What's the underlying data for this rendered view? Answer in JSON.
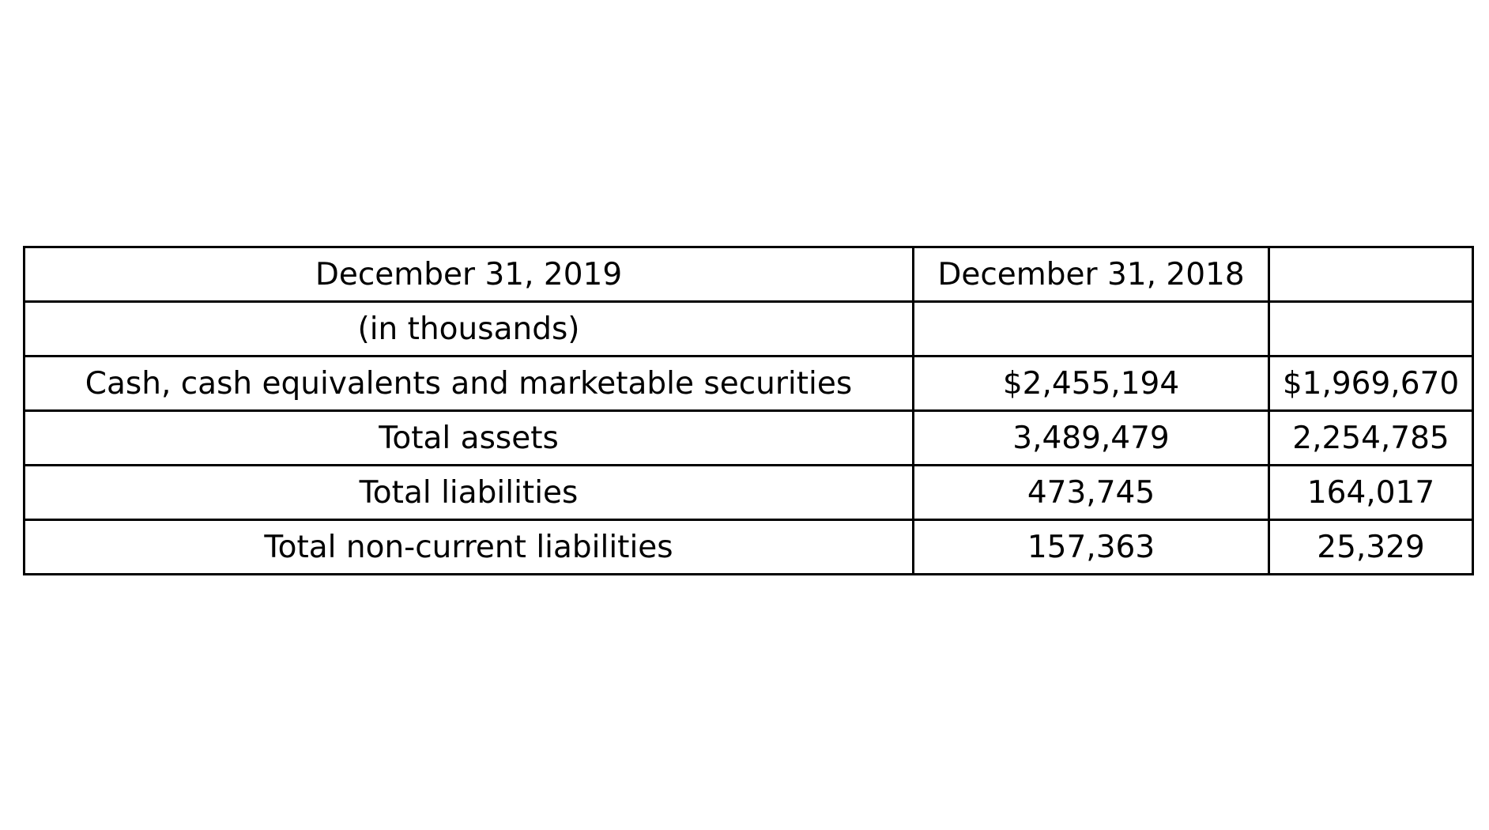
{
  "chart_data": {
    "type": "table",
    "rows": [
      [
        "December 31, 2019",
        "December 31, 2018",
        ""
      ],
      [
        "(in thousands)",
        "",
        ""
      ],
      [
        "Cash, cash equivalents and marketable securities",
        "$2,455,194",
        "$1,969,670"
      ],
      [
        "Total assets",
        "3,489,479",
        "2,254,785"
      ],
      [
        "Total liabilities",
        "473,745",
        "164,017"
      ],
      [
        "Total non-current liabilities",
        "157,363",
        "25,329"
      ]
    ]
  }
}
